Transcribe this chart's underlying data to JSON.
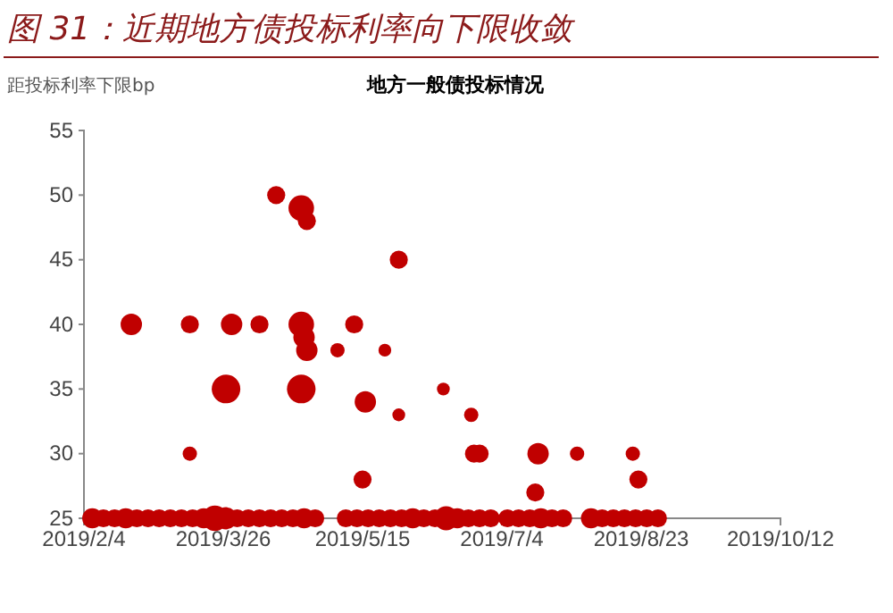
{
  "chart_data": {
    "type": "bubble",
    "title": "图 31：近期地方债投标利率向下限收敛",
    "subtitle": "地方一般债投标情况",
    "ylabel": "距投标利率下限bp",
    "color": "#c00000",
    "x": [
      "2019-02-21",
      "2019-03-14",
      "2019-03-14",
      "2019-03-27",
      "2019-03-29",
      "2019-04-08",
      "2019-04-14",
      "2019-04-23",
      "2019-04-25",
      "2019-04-23",
      "2019-04-24",
      "2019-04-25",
      "2019-04-23",
      "2019-05-06",
      "2019-05-12",
      "2019-05-16",
      "2019-05-15",
      "2019-05-23",
      "2019-05-28",
      "2019-05-28",
      "2019-06-13",
      "2019-06-23",
      "2019-06-24",
      "2019-06-26",
      "2019-07-17",
      "2019-07-16",
      "2019-07-31",
      "2019-08-20",
      "2019-08-22",
      "2019-02-07",
      "2019-02-11",
      "2019-02-15",
      "2019-02-19",
      "2019-02-23",
      "2019-02-27",
      "2019-03-03",
      "2019-03-07",
      "2019-03-11",
      "2019-03-15",
      "2019-03-19",
      "2019-03-23",
      "2019-03-27",
      "2019-03-31",
      "2019-04-04",
      "2019-04-08",
      "2019-04-12",
      "2019-04-16",
      "2019-04-20",
      "2019-04-24",
      "2019-04-28",
      "2019-05-09",
      "2019-05-13",
      "2019-05-17",
      "2019-05-21",
      "2019-05-25",
      "2019-05-29",
      "2019-06-02",
      "2019-06-06",
      "2019-06-10",
      "2019-06-14",
      "2019-06-18",
      "2019-06-22",
      "2019-06-26",
      "2019-06-30",
      "2019-07-06",
      "2019-07-10",
      "2019-07-14",
      "2019-07-18",
      "2019-07-22",
      "2019-07-26",
      "2019-08-05",
      "2019-08-09",
      "2019-08-13",
      "2019-08-17",
      "2019-08-21",
      "2019-08-25",
      "2019-08-29"
    ],
    "values": [
      40,
      30,
      40,
      35,
      40,
      40,
      50,
      49,
      48,
      40,
      39,
      38,
      35,
      38,
      40,
      34,
      28,
      38,
      45,
      33,
      35,
      33,
      30,
      30,
      30,
      27,
      30,
      30,
      28,
      25,
      25,
      25,
      25,
      25,
      25,
      25,
      25,
      25,
      25,
      25,
      25,
      25,
      25,
      25,
      25,
      25,
      25,
      25,
      25,
      25,
      25,
      25,
      25,
      25,
      25,
      25,
      25,
      25,
      25,
      25,
      25,
      25,
      25,
      25,
      25,
      25,
      25,
      25,
      25,
      25,
      25,
      25,
      25,
      25,
      25,
      25,
      25
    ],
    "sizes": [
      0.56,
      0.25,
      0.4,
      1,
      0.56,
      0.4,
      0.4,
      0.8,
      0.4,
      0.8,
      0.56,
      0.56,
      1,
      0.25,
      0.4,
      0.56,
      0.4,
      0.2,
      0.4,
      0.2,
      0.2,
      0.25,
      0.4,
      0.4,
      0.56,
      0.4,
      0.25,
      0.25,
      0.4,
      0.5,
      0.4,
      0.4,
      0.5,
      0.4,
      0.4,
      0.4,
      0.4,
      0.4,
      0.4,
      0.5,
      0.8,
      0.6,
      0.4,
      0.4,
      0.4,
      0.4,
      0.4,
      0.4,
      0.5,
      0.4,
      0.4,
      0.4,
      0.4,
      0.4,
      0.4,
      0.4,
      0.5,
      0.4,
      0.4,
      0.7,
      0.5,
      0.4,
      0.4,
      0.4,
      0.4,
      0.4,
      0.4,
      0.5,
      0.4,
      0.4,
      0.5,
      0.4,
      0.4,
      0.4,
      0.4,
      0.4,
      0.4
    ],
    "xlim": [
      "2019-02-04",
      "2019-10-12"
    ],
    "xticks": [
      {
        "value": "2019-02-04",
        "label": "2019/2/4"
      },
      {
        "value": "2019-03-26",
        "label": "2019/3/26"
      },
      {
        "value": "2019-05-15",
        "label": "2019/5/15"
      },
      {
        "value": "2019-07-04",
        "label": "2019/7/4"
      },
      {
        "value": "2019-08-23",
        "label": "2019/8/23"
      },
      {
        "value": "2019-10-12",
        "label": "2019/10/12"
      }
    ],
    "ylim": [
      25,
      55
    ],
    "yticks": [
      25,
      30,
      35,
      40,
      45,
      50,
      55
    ]
  }
}
